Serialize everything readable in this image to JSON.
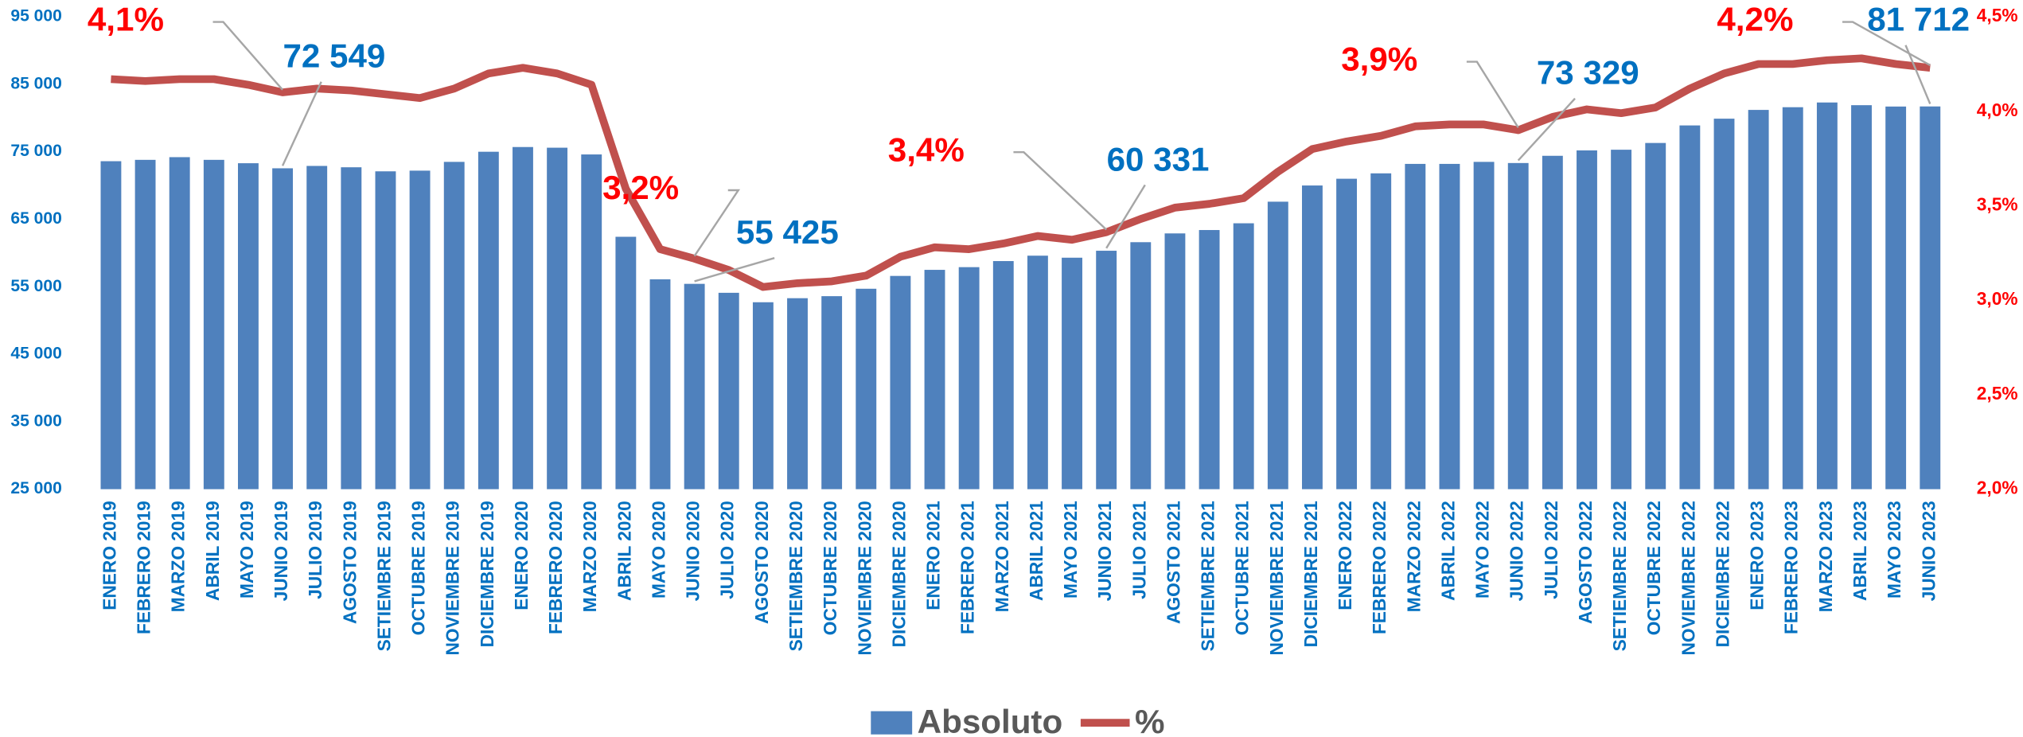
{
  "chart_data": {
    "type": "combo",
    "categories": [
      "ENERO 2019",
      "FEBRERO 2019",
      "MARZO 2019",
      "ABRIL 2019",
      "MAYO 2019",
      "JUNIO 2019",
      "JULIO 2019",
      "AGOSTO 2019",
      "SETIEMBRE 2019",
      "OCTUBRE 2019",
      "NOVIEMBRE 2019",
      "DICIEMBRE 2019",
      "ENERO 2020",
      "FEBRERO 2020",
      "MARZO 2020",
      "ABRIL 2020",
      "MAYO 2020",
      "JUNIO 2020",
      "JULIO 2020",
      "AGOSTO 2020",
      "SETIEMBRE 2020",
      "OCTUBRE 2020",
      "NOVIEMBRE 2020",
      "DICIEMBRE 2020",
      "ENERO 2021",
      "FEBRERO 2021",
      "MARZO 2021",
      "ABRIL 2021",
      "MAYO 2021",
      "JUNIO 2021",
      "JULIO 2021",
      "AGOSTO 2021",
      "SETIEMBRE 2021",
      "OCTUBRE 2021",
      "NOVIEMBRE 2021",
      "DICIEMBRE 2021",
      "ENERO 2022",
      "FEBRERO 2022",
      "MARZO 2022",
      "ABRIL 2022",
      "MAYO 2022",
      "JUNIO 2022",
      "JULIO 2022",
      "AGOSTO 2022",
      "SETIEMBRE 2022",
      "OCTUBRE 2022",
      "NOVIEMBRE 2022",
      "DICIEMBRE 2022",
      "ENERO 2023",
      "FEBRERO 2023",
      "MARZO 2023",
      "ABRIL 2023",
      "MAYO 2023",
      "JUNIO 2023"
    ],
    "series": [
      {
        "name": "Absoluto",
        "type": "bar",
        "color": "#4f81bd",
        "values": [
          73600,
          73800,
          74200,
          73800,
          73300,
          72549,
          72900,
          72700,
          72100,
          72200,
          73500,
          75000,
          75700,
          75600,
          74600,
          62400,
          56100,
          55425,
          54100,
          52700,
          53300,
          53600,
          54700,
          56600,
          57500,
          57900,
          58800,
          59600,
          59300,
          60331,
          61600,
          62900,
          63400,
          64400,
          67600,
          70000,
          71000,
          71800,
          73200,
          73200,
          73500,
          73329,
          74400,
          75200,
          75300,
          76300,
          78900,
          79900,
          81200,
          81600,
          82300,
          81900,
          81700,
          81712
        ],
        "value_labels": [
          null,
          null,
          null,
          null,
          null,
          "72 549",
          null,
          null,
          null,
          null,
          null,
          null,
          null,
          null,
          null,
          null,
          null,
          "55 425",
          null,
          null,
          null,
          null,
          null,
          null,
          null,
          null,
          null,
          null,
          null,
          "60 331",
          null,
          null,
          null,
          null,
          null,
          null,
          null,
          null,
          null,
          null,
          null,
          "73 329",
          null,
          null,
          null,
          null,
          null,
          null,
          null,
          null,
          null,
          null,
          null,
          "81 712"
        ]
      },
      {
        "name": "%",
        "type": "line",
        "axis": "y2",
        "color": "#c0504d",
        "values": [
          4.17,
          4.16,
          4.17,
          4.17,
          4.14,
          4.1,
          4.12,
          4.11,
          4.09,
          4.07,
          4.12,
          4.2,
          4.23,
          4.2,
          4.14,
          3.59,
          3.27,
          3.22,
          3.16,
          3.07,
          3.09,
          3.1,
          3.13,
          3.23,
          3.28,
          3.27,
          3.3,
          3.34,
          3.32,
          3.36,
          3.43,
          3.49,
          3.51,
          3.54,
          3.68,
          3.8,
          3.84,
          3.87,
          3.92,
          3.93,
          3.93,
          3.9,
          3.97,
          4.01,
          3.99,
          4.02,
          4.12,
          4.2,
          4.25,
          4.25,
          4.27,
          4.28,
          4.25,
          4.23
        ],
        "value_labels": [
          null,
          null,
          null,
          null,
          null,
          "4,1%",
          null,
          null,
          null,
          null,
          null,
          null,
          null,
          null,
          null,
          null,
          null,
          "3,2%",
          null,
          null,
          null,
          null,
          null,
          null,
          null,
          null,
          null,
          null,
          null,
          "3,4%",
          null,
          null,
          null,
          null,
          null,
          null,
          null,
          null,
          null,
          null,
          null,
          "3,9%",
          null,
          null,
          null,
          null,
          null,
          null,
          null,
          null,
          null,
          null,
          null,
          "4,2%"
        ]
      }
    ],
    "ylim": [
      25000,
      95000
    ],
    "yticks": [
      {
        "value": 25000,
        "label": "25 000"
      },
      {
        "value": 35000,
        "label": "35 000"
      },
      {
        "value": 45000,
        "label": "45 000"
      },
      {
        "value": 55000,
        "label": "55 000"
      },
      {
        "value": 65000,
        "label": "65 000"
      },
      {
        "value": 75000,
        "label": "75 000"
      },
      {
        "value": 85000,
        "label": "85 000"
      },
      {
        "value": 95000,
        "label": "95 000"
      }
    ],
    "y2lim": [
      2.0,
      4.5
    ],
    "y2ticks": [
      {
        "value": 2.0,
        "label": "2,0%"
      },
      {
        "value": 2.5,
        "label": "2,5%"
      },
      {
        "value": 3.0,
        "label": "3,0%"
      },
      {
        "value": 3.5,
        "label": "3,5%"
      },
      {
        "value": 4.0,
        "label": "4,0%"
      },
      {
        "value": 4.5,
        "label": "4,5%"
      }
    ],
    "grid": false,
    "legend": "bottom"
  }
}
